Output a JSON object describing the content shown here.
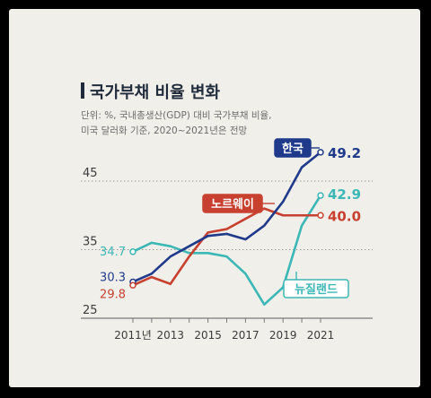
{
  "chart_data": {
    "type": "line",
    "title": "국가부채 비율 변화",
    "subtitle_lines": [
      "단위: %, 국내총생산(GDP) 대비 국가부채 비율,",
      "미국 달러화 기준, 2020~2021년은 전망"
    ],
    "x": [
      2011,
      2012,
      2013,
      2014,
      2015,
      2016,
      2017,
      2018,
      2019,
      2020,
      2021
    ],
    "x_tick_labels": [
      {
        "year": 2011,
        "label": "2011년"
      },
      {
        "year": 2013,
        "label": "2013"
      },
      {
        "year": 2015,
        "label": "2015"
      },
      {
        "year": 2017,
        "label": "2017"
      },
      {
        "year": 2019,
        "label": "2019"
      },
      {
        "year": 2021,
        "label": "2021"
      }
    ],
    "y_ticks": [
      25,
      35,
      45
    ],
    "ylim": [
      25,
      51
    ],
    "xlim": [
      2011,
      2021
    ],
    "grid": "horizontal dotted",
    "series": [
      {
        "name": "한국",
        "color": "#1f3a8a",
        "values": [
          30.3,
          31.5,
          34.0,
          35.5,
          37.0,
          37.3,
          36.5,
          38.5,
          42.0,
          47.0,
          49.2
        ],
        "start_label": "30.3",
        "end_label": "49.2",
        "legend_style": "filled"
      },
      {
        "name": "노르웨이",
        "color": "#c8402f",
        "values": [
          29.8,
          31.0,
          30.0,
          34.0,
          37.5,
          38.0,
          39.5,
          41.0,
          40.0,
          40.0,
          40.0
        ],
        "start_label": "29.8",
        "end_label": "40.0",
        "legend_style": "filled"
      },
      {
        "name": "뉴질랜드",
        "color": "#3bb7b5",
        "values": [
          34.7,
          36.0,
          35.5,
          34.5,
          34.5,
          34.0,
          31.5,
          27.0,
          29.5,
          38.5,
          42.9
        ],
        "start_label": "34.7",
        "end_label": "42.9",
        "legend_style": "outlined"
      }
    ]
  }
}
